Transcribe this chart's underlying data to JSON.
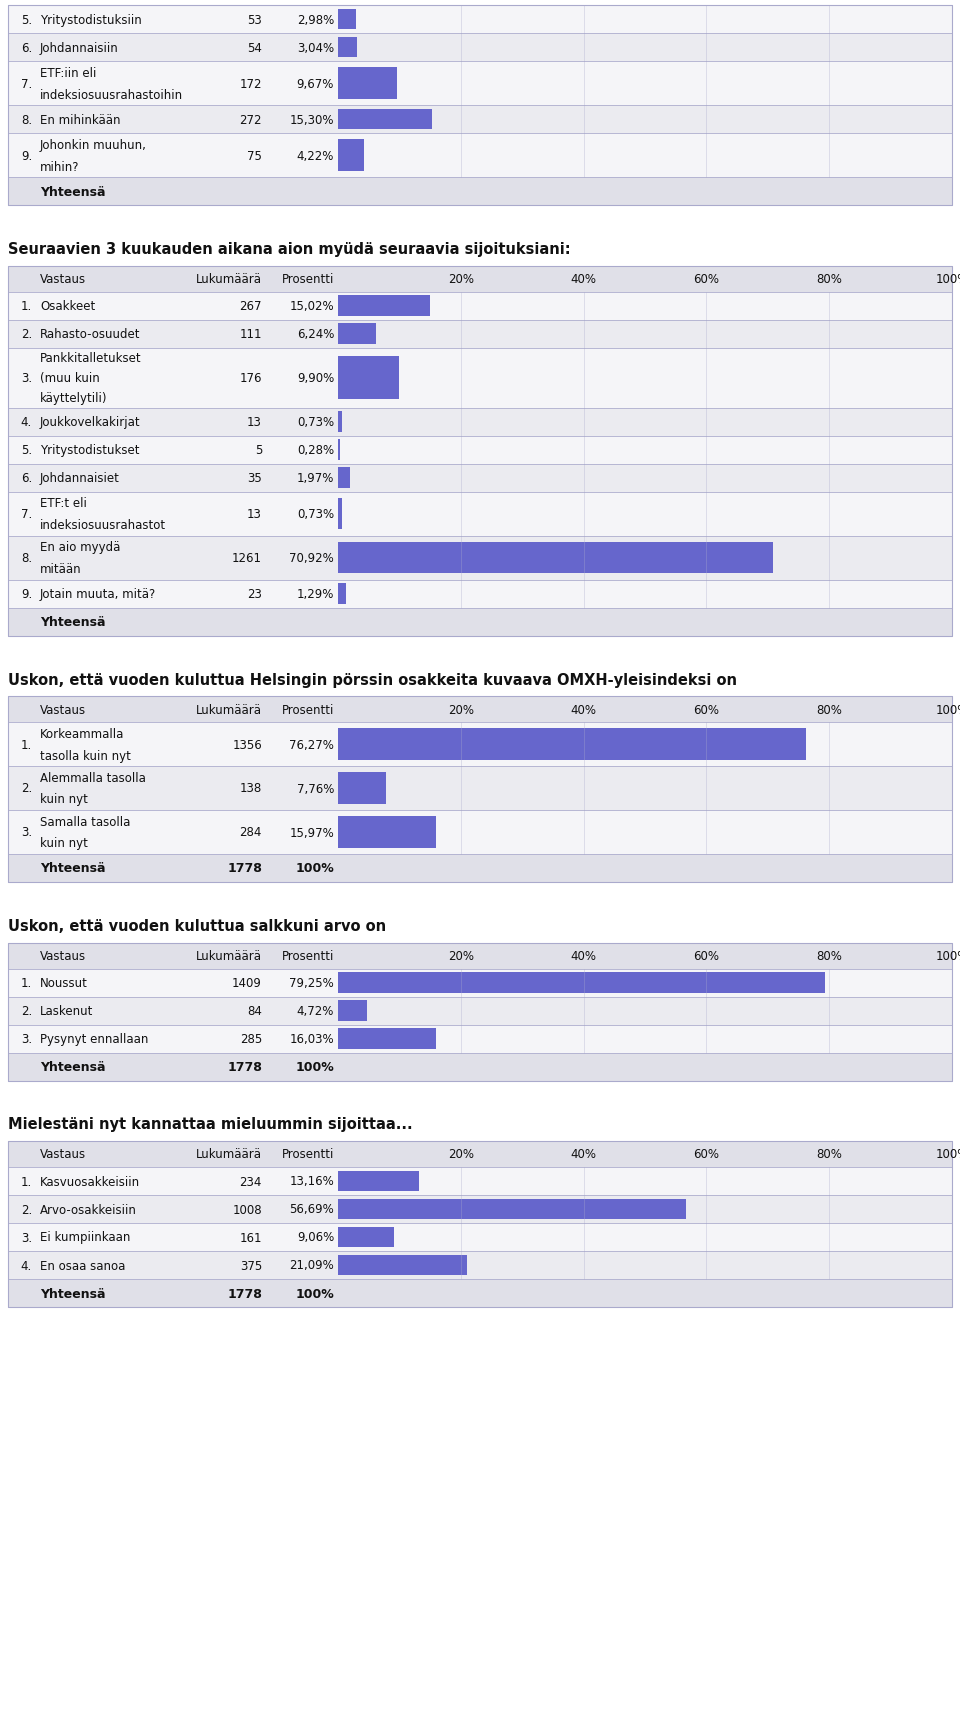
{
  "bg_color": "#ffffff",
  "border_color": "#aaaacc",
  "header_bg": "#e0e0e8",
  "row_bg1": "#f5f5f8",
  "row_bg2": "#ebebf0",
  "bar_color": "#6666cc",
  "text_color": "#111111",
  "top_rows": [
    {
      "num": "5.",
      "label": "Yritystodistuksiin",
      "count": "53",
      "pct": "2,98%",
      "val": 2.98,
      "multiline": false
    },
    {
      "num": "6.",
      "label": "Johdannaisiin",
      "count": "54",
      "pct": "3,04%",
      "val": 3.04,
      "multiline": false
    },
    {
      "num": "7.",
      "label": "ETF:iin eli\nindeksiosuusrahastoihin",
      "count": "172",
      "pct": "9,67%",
      "val": 9.67,
      "multiline": true
    },
    {
      "num": "8.",
      "label": "En mihinkään",
      "count": "272",
      "pct": "15,30%",
      "val": 15.3,
      "multiline": false
    },
    {
      "num": "9.",
      "label": "Johonkin muuhun,\nmihin?",
      "count": "75",
      "pct": "4,22%",
      "val": 4.22,
      "multiline": true
    }
  ],
  "top_footer": "Yhteensä",
  "sec1_title": "Seuraavien 3 kuukauden aikana aion myüdä seuraavia sijoituksiani:",
  "sec1_rows": [
    {
      "num": "1.",
      "label": "Osakkeet",
      "count": "267",
      "pct": "15,02%",
      "val": 15.02,
      "multiline": false
    },
    {
      "num": "2.",
      "label": "Rahasto-osuudet",
      "count": "111",
      "pct": "6,24%",
      "val": 6.24,
      "multiline": false
    },
    {
      "num": "3.",
      "label": "Pankkitalletukset\n(muu kuin\nkäyttelytili)",
      "count": "176",
      "pct": "9,90%",
      "val": 9.9,
      "multiline": true
    },
    {
      "num": "4.",
      "label": "Joukkovelkakirjat",
      "count": "13",
      "pct": "0,73%",
      "val": 0.73,
      "multiline": false
    },
    {
      "num": "5.",
      "label": "Yritystodistukset",
      "count": "5",
      "pct": "0,28%",
      "val": 0.28,
      "multiline": false
    },
    {
      "num": "6.",
      "label": "Johdannaisiet",
      "count": "35",
      "pct": "1,97%",
      "val": 1.97,
      "multiline": false
    },
    {
      "num": "7.",
      "label": "ETF:t eli\nindeksiosuusrahastot",
      "count": "13",
      "pct": "0,73%",
      "val": 0.73,
      "multiline": true
    },
    {
      "num": "8.",
      "label": "En aio myydä\nmitään",
      "count": "1261",
      "pct": "70,92%",
      "val": 70.92,
      "multiline": true
    },
    {
      "num": "9.",
      "label": "Jotain muuta, mitä?",
      "count": "23",
      "pct": "1,29%",
      "val": 1.29,
      "multiline": false
    }
  ],
  "sec1_footer": "Yhteensä",
  "sec2_title": "Uskon, että vuoden kuluttua Helsingin pörssin osakkeita kuvaava OMXH-yleisindeksi on",
  "sec2_rows": [
    {
      "num": "1.",
      "label": "Korkeammalla\ntasolla kuin nyt",
      "count": "1356",
      "pct": "76,27%",
      "val": 76.27,
      "multiline": true
    },
    {
      "num": "2.",
      "label": "Alemmalla tasolla\nkuin nyt",
      "count": "138",
      "pct": "7,76%",
      "val": 7.76,
      "multiline": true
    },
    {
      "num": "3.",
      "label": "Samalla tasolla\nkuin nyt",
      "count": "284",
      "pct": "15,97%",
      "val": 15.97,
      "multiline": true
    }
  ],
  "sec2_footer": "Yhteensä",
  "sec2_footer_count": "1778",
  "sec2_footer_pct": "100%",
  "sec3_title": "Uskon, että vuoden kuluttua salkkuni arvo on",
  "sec3_rows": [
    {
      "num": "1.",
      "label": "Noussut",
      "count": "1409",
      "pct": "79,25%",
      "val": 79.25,
      "multiline": false
    },
    {
      "num": "2.",
      "label": "Laskenut",
      "count": "84",
      "pct": "4,72%",
      "val": 4.72,
      "multiline": false
    },
    {
      "num": "3.",
      "label": "Pysynyt ennallaan",
      "count": "285",
      "pct": "16,03%",
      "val": 16.03,
      "multiline": false
    }
  ],
  "sec3_footer": "Yhteensä",
  "sec3_footer_count": "1778",
  "sec3_footer_pct": "100%",
  "sec4_title": "Mielestäni nyt kannattaa mieluummin sijoittaa...",
  "sec4_rows": [
    {
      "num": "1.",
      "label": "Kasvuosakkeisiin",
      "count": "234",
      "pct": "13,16%",
      "val": 13.16,
      "multiline": false
    },
    {
      "num": "2.",
      "label": "Arvo-osakkeisiin",
      "count": "1008",
      "pct": "56,69%",
      "val": 56.69,
      "multiline": false
    },
    {
      "num": "3.",
      "label": "Ei kumpiinkaan",
      "count": "161",
      "pct": "9,06%",
      "val": 9.06,
      "multiline": false
    },
    {
      "num": "4.",
      "label": "En osaa sanoa",
      "count": "375",
      "pct": "21,09%",
      "val": 21.09,
      "multiline": false
    }
  ],
  "sec4_footer": "Yhteensä",
  "sec4_footer_count": "1778",
  "sec4_footer_pct": "100%"
}
